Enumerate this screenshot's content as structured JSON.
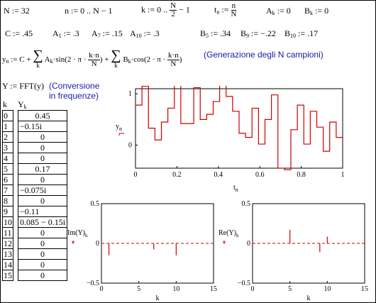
{
  "defs": {
    "N": "N := 32",
    "n_range": "n := 0 .. N − 1",
    "k_range_pre": "k := 0 ..",
    "k_range_num": "N",
    "k_range_den": "2",
    "k_range_post": "− 1",
    "tn_pre": "t",
    "tn_sub": "n",
    "tn_assign": " := ",
    "tn_num": "n",
    "tn_den": "N",
    "Ak0": "A",
    "Ak0_sub": "k",
    "Ak0_val": " := 0",
    "Bk0": "B",
    "Bk0_sub": "k",
    "Bk0_val": " := 0",
    "C": "C := .45",
    "A1": "A",
    "A1_sub": "1",
    "A1_val": " := .3",
    "A7": "A",
    "A7_sub": "7",
    "A7_val": " := .15",
    "A10": "A",
    "A10_sub": "10",
    "A10_val": " := .3",
    "B5": "B",
    "B5_sub": "5",
    "B5_val": " := .34",
    "B9": "B",
    "B9_sub": "9",
    "B9_val": " := −.22",
    "B10": "B",
    "B10_sub": "10",
    "B10_val": " := .17"
  },
  "synthesis": {
    "lhs": "y",
    "lhs_sub": "n",
    "eq1": " := C + ",
    "term1": "A",
    "term1_sub": "k",
    "sin": "·sin",
    "arg_pre": "(2 · π · ",
    "arg_num": "k·n",
    "arg_den": "N",
    "arg_post": ")",
    "plus": " + ",
    "term2": "B",
    "term2_sub": "k",
    "cos": "·cos",
    "sum_idx": "k",
    "comment": "(Generazione degli N campioni)"
  },
  "fft": {
    "expr": "Y := FFT(y)",
    "comment_line1": "(Conversione",
    "comment_line2": "in frequenze)"
  },
  "table": {
    "k_header": "k",
    "y_header": "Y",
    "y_header_sub": "k",
    "k_values": [
      "0",
      "1",
      "2",
      "3",
      "4",
      "5",
      "6",
      "7",
      "8",
      "9",
      "10",
      "11",
      "12",
      "13",
      "14",
      "15"
    ],
    "y_values": [
      "0.45",
      "−0.15i",
      "0",
      "0",
      "0",
      "0.17",
      "0",
      "−0.075i",
      "0",
      "−0.11",
      "0.085 − 0.15i",
      "0",
      "0",
      "0",
      "0",
      "0"
    ]
  },
  "chart_data": [
    {
      "type": "line",
      "step": true,
      "xlabel": "t",
      "xlabel_sub": "n",
      "ylabel": "y",
      "ylabel_sub": "n",
      "xlim": [
        0,
        1
      ],
      "ylim": [
        -0.45,
        1.1
      ],
      "x_ticks": [
        "0",
        "0.2",
        "0.4",
        "0.6",
        "0.8",
        "1"
      ],
      "y_ticks": [
        "0",
        "1"
      ],
      "color": "#cc0000",
      "x": [
        0,
        0.03125,
        0.0625,
        0.09375,
        0.125,
        0.15625,
        0.1875,
        0.21875,
        0.25,
        0.28125,
        0.3125,
        0.34375,
        0.375,
        0.40625,
        0.4375,
        0.46875,
        0.5,
        0.53125,
        0.5625,
        0.59375,
        0.625,
        0.65625,
        0.6875,
        0.71875,
        0.75,
        0.78125,
        0.8125,
        0.84375,
        0.875,
        0.90625,
        0.9375,
        0.96875
      ],
      "y": [
        0.78,
        1.15,
        0.33,
        0.1,
        0.45,
        0.72,
        1.2,
        0.42,
        0.42,
        1.12,
        0.5,
        0.6,
        0.85,
        1.3,
        0.95,
        0.66,
        0.23,
        0.15,
        0.72,
        0.02,
        0.5,
        0.98,
        -0.45,
        -0.48,
        0.3,
        0.78,
        0.02,
        0.66,
        0.35,
        -0.12,
        0.45,
        0.15
      ]
    },
    {
      "type": "stem",
      "xlabel": "k",
      "ylabel": "Im(Y)",
      "ylabel_sub": "k",
      "xlim": [
        0,
        15
      ],
      "ylim": [
        -0.5,
        0.5
      ],
      "x_ticks": [
        "0",
        "5",
        "10",
        "15"
      ],
      "y_ticks": [
        "0.5",
        "0",
        "−0.5"
      ],
      "color": "#cc0000",
      "x": [
        1,
        7,
        10
      ],
      "y": [
        -0.15,
        -0.075,
        -0.15
      ]
    },
    {
      "type": "stem",
      "xlabel": "k",
      "ylabel": "Re(Y)",
      "ylabel_sub": "k",
      "xlim": [
        0,
        15
      ],
      "ylim": [
        -0.5,
        0.5
      ],
      "x_ticks": [
        "0",
        "5",
        "10",
        "15"
      ],
      "y_ticks": [
        "0.5",
        "0",
        "−0.5"
      ],
      "color": "#cc0000",
      "x": [
        5,
        9,
        10
      ],
      "y": [
        0.17,
        -0.11,
        0.085
      ]
    }
  ]
}
